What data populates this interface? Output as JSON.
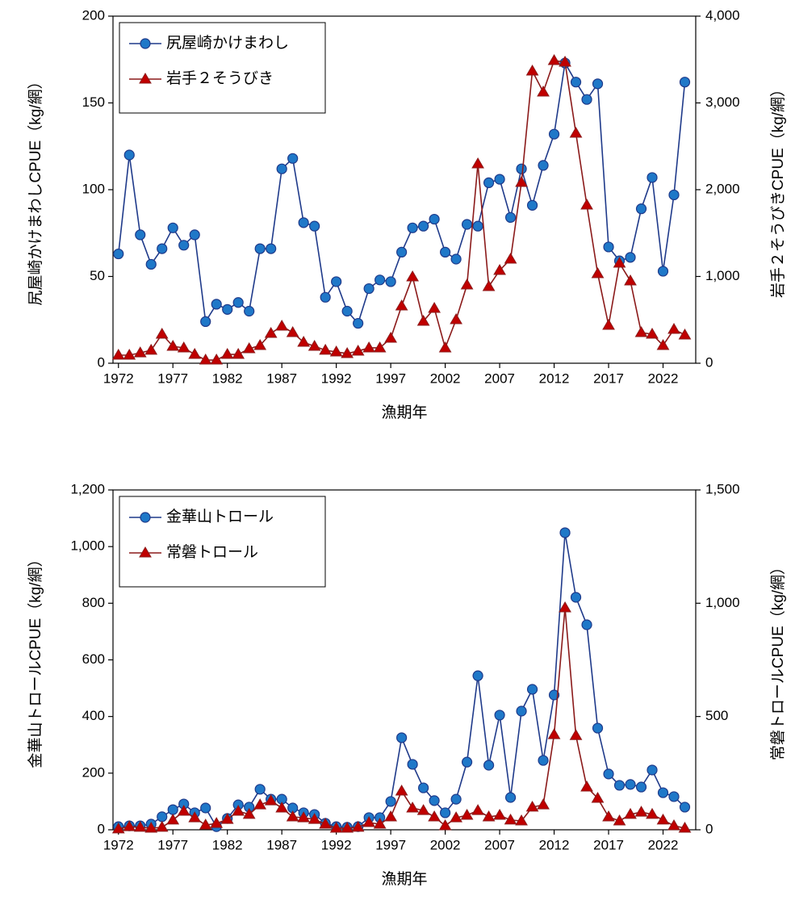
{
  "chart_data": [
    {
      "type": "line",
      "x": [
        1972,
        1973,
        1974,
        1975,
        1976,
        1977,
        1978,
        1979,
        1980,
        1981,
        1982,
        1983,
        1984,
        1985,
        1986,
        1987,
        1988,
        1989,
        1990,
        1991,
        1992,
        1993,
        1994,
        1995,
        1996,
        1997,
        1998,
        1999,
        2000,
        2001,
        2002,
        2003,
        2004,
        2005,
        2006,
        2007,
        2008,
        2009,
        2010,
        2011,
        2012,
        2013,
        2014,
        2015,
        2016,
        2017,
        2018,
        2019,
        2020,
        2021,
        2022,
        2023,
        2024
      ],
      "xlim": [
        1971.5,
        2025
      ],
      "xticks": [
        1972,
        1977,
        1982,
        1987,
        1992,
        1997,
        2002,
        2007,
        2012,
        2017,
        2022
      ],
      "xlabel": "漁期年",
      "ylabel": "尻屋崎かけまわしCPUE（kg/網）",
      "y2label": "岩手２そうびきCPUE（kg/網）",
      "ylim": [
        0,
        200
      ],
      "yticks": [
        0,
        50,
        100,
        150,
        200
      ],
      "y2lim": [
        0,
        4000
      ],
      "y2ticks": [
        0,
        {
          "value": 1000,
          "label": "1,000"
        },
        {
          "value": 2000,
          "label": "2,000"
        },
        {
          "value": 3000,
          "label": "3,000"
        },
        {
          "value": 4000,
          "label": "4,000"
        }
      ],
      "legend": "upper left",
      "series": [
        {
          "name": "尻屋崎かけまわし",
          "color": "#1f3a8a",
          "marker": "circle",
          "values": [
            63,
            120,
            74,
            57,
            66,
            78,
            68,
            74,
            24,
            34,
            31,
            35,
            30,
            66,
            66,
            112,
            118,
            81,
            79,
            38,
            47,
            30,
            23,
            43,
            48,
            47,
            64,
            78,
            79,
            83,
            64,
            60,
            80,
            79,
            104,
            106,
            84,
            112,
            91,
            114,
            132,
            173,
            162,
            152,
            161,
            67,
            59,
            61,
            89,
            107,
            53,
            97,
            162
          ]
        },
        {
          "name": "岩手２そうびき",
          "color": "#8b1a1a",
          "marker": "triangle",
          "axis": "y2",
          "values": [
            93,
            93,
            120,
            150,
            335,
            195,
            177,
            102,
            37,
            37,
            102,
            102,
            167,
            205,
            344,
            428,
            353,
            242,
            195,
            150,
            130,
            112,
            140,
            177,
            177,
            288,
            660,
            995,
            484,
            633,
            177,
            502,
            902,
            2298,
            884,
            1070,
            1200,
            2084,
            3367,
            3126,
            3488,
            3470,
            2651,
            1823,
            1033,
            437,
            1153,
            949,
            353,
            335,
            205,
            391,
            326
          ]
        }
      ]
    },
    {
      "type": "line",
      "x": [
        1972,
        1973,
        1974,
        1975,
        1976,
        1977,
        1978,
        1979,
        1980,
        1981,
        1982,
        1983,
        1984,
        1985,
        1986,
        1987,
        1988,
        1989,
        1990,
        1991,
        1992,
        1993,
        1994,
        1995,
        1996,
        1997,
        1998,
        1999,
        2000,
        2001,
        2002,
        2003,
        2004,
        2005,
        2006,
        2007,
        2008,
        2009,
        2010,
        2011,
        2012,
        2013,
        2014,
        2015,
        2016,
        2017,
        2018,
        2019,
        2020,
        2021,
        2022,
        2023,
        2024
      ],
      "xlim": [
        1971.5,
        2025
      ],
      "xticks": [
        1972,
        1977,
        1982,
        1987,
        1992,
        1997,
        2002,
        2007,
        2012,
        2017,
        2022
      ],
      "xlabel": "漁期年",
      "ylabel": "金華山トロールCPUE（kg/網）",
      "y2label": "常磐トロールCPUE（kg/網）",
      "ylim": [
        0,
        1200
      ],
      "yticks": [
        0,
        200,
        400,
        600,
        800,
        {
          "value": 1000,
          "label": "1,000"
        },
        {
          "value": 1200,
          "label": "1,200"
        }
      ],
      "y2lim": [
        0,
        1500
      ],
      "y2ticks": [
        0,
        500,
        {
          "value": 1000,
          "label": "1,000"
        },
        {
          "value": 1500,
          "label": "1,500"
        }
      ],
      "legend": "upper left",
      "series": [
        {
          "name": "金華山トロール",
          "color": "#1f3a8a",
          "marker": "circle",
          "values": [
            11,
            14,
            14,
            20,
            46,
            71,
            91,
            60,
            77,
            11,
            40,
            88,
            80,
            143,
            108,
            108,
            77,
            60,
            54,
            23,
            11,
            9,
            11,
            43,
            43,
            100,
            325,
            231,
            148,
            103,
            60,
            108,
            239,
            544,
            228,
            405,
            114,
            419,
            496,
            245,
            476,
            1049,
            821,
            724,
            359,
            197,
            157,
            160,
            151,
            211,
            131,
            117,
            80
          ]
        },
        {
          "name": "常磐トロール",
          "color": "#8b1a1a",
          "marker": "triangle",
          "axis": "y2",
          "values": [
            4,
            14,
            11,
            7,
            11,
            43,
            82,
            53,
            21,
            28,
            46,
            82,
            68,
            110,
            128,
            96,
            57,
            53,
            46,
            25,
            7,
            7,
            11,
            32,
            25,
            57,
            171,
            96,
            85,
            57,
            18,
            53,
            64,
            85,
            57,
            64,
            43,
            39,
            100,
            110,
            420,
            980,
            416,
            189,
            139,
            57,
            39,
            68,
            78,
            68,
            43,
            18,
            7
          ]
        }
      ]
    }
  ]
}
